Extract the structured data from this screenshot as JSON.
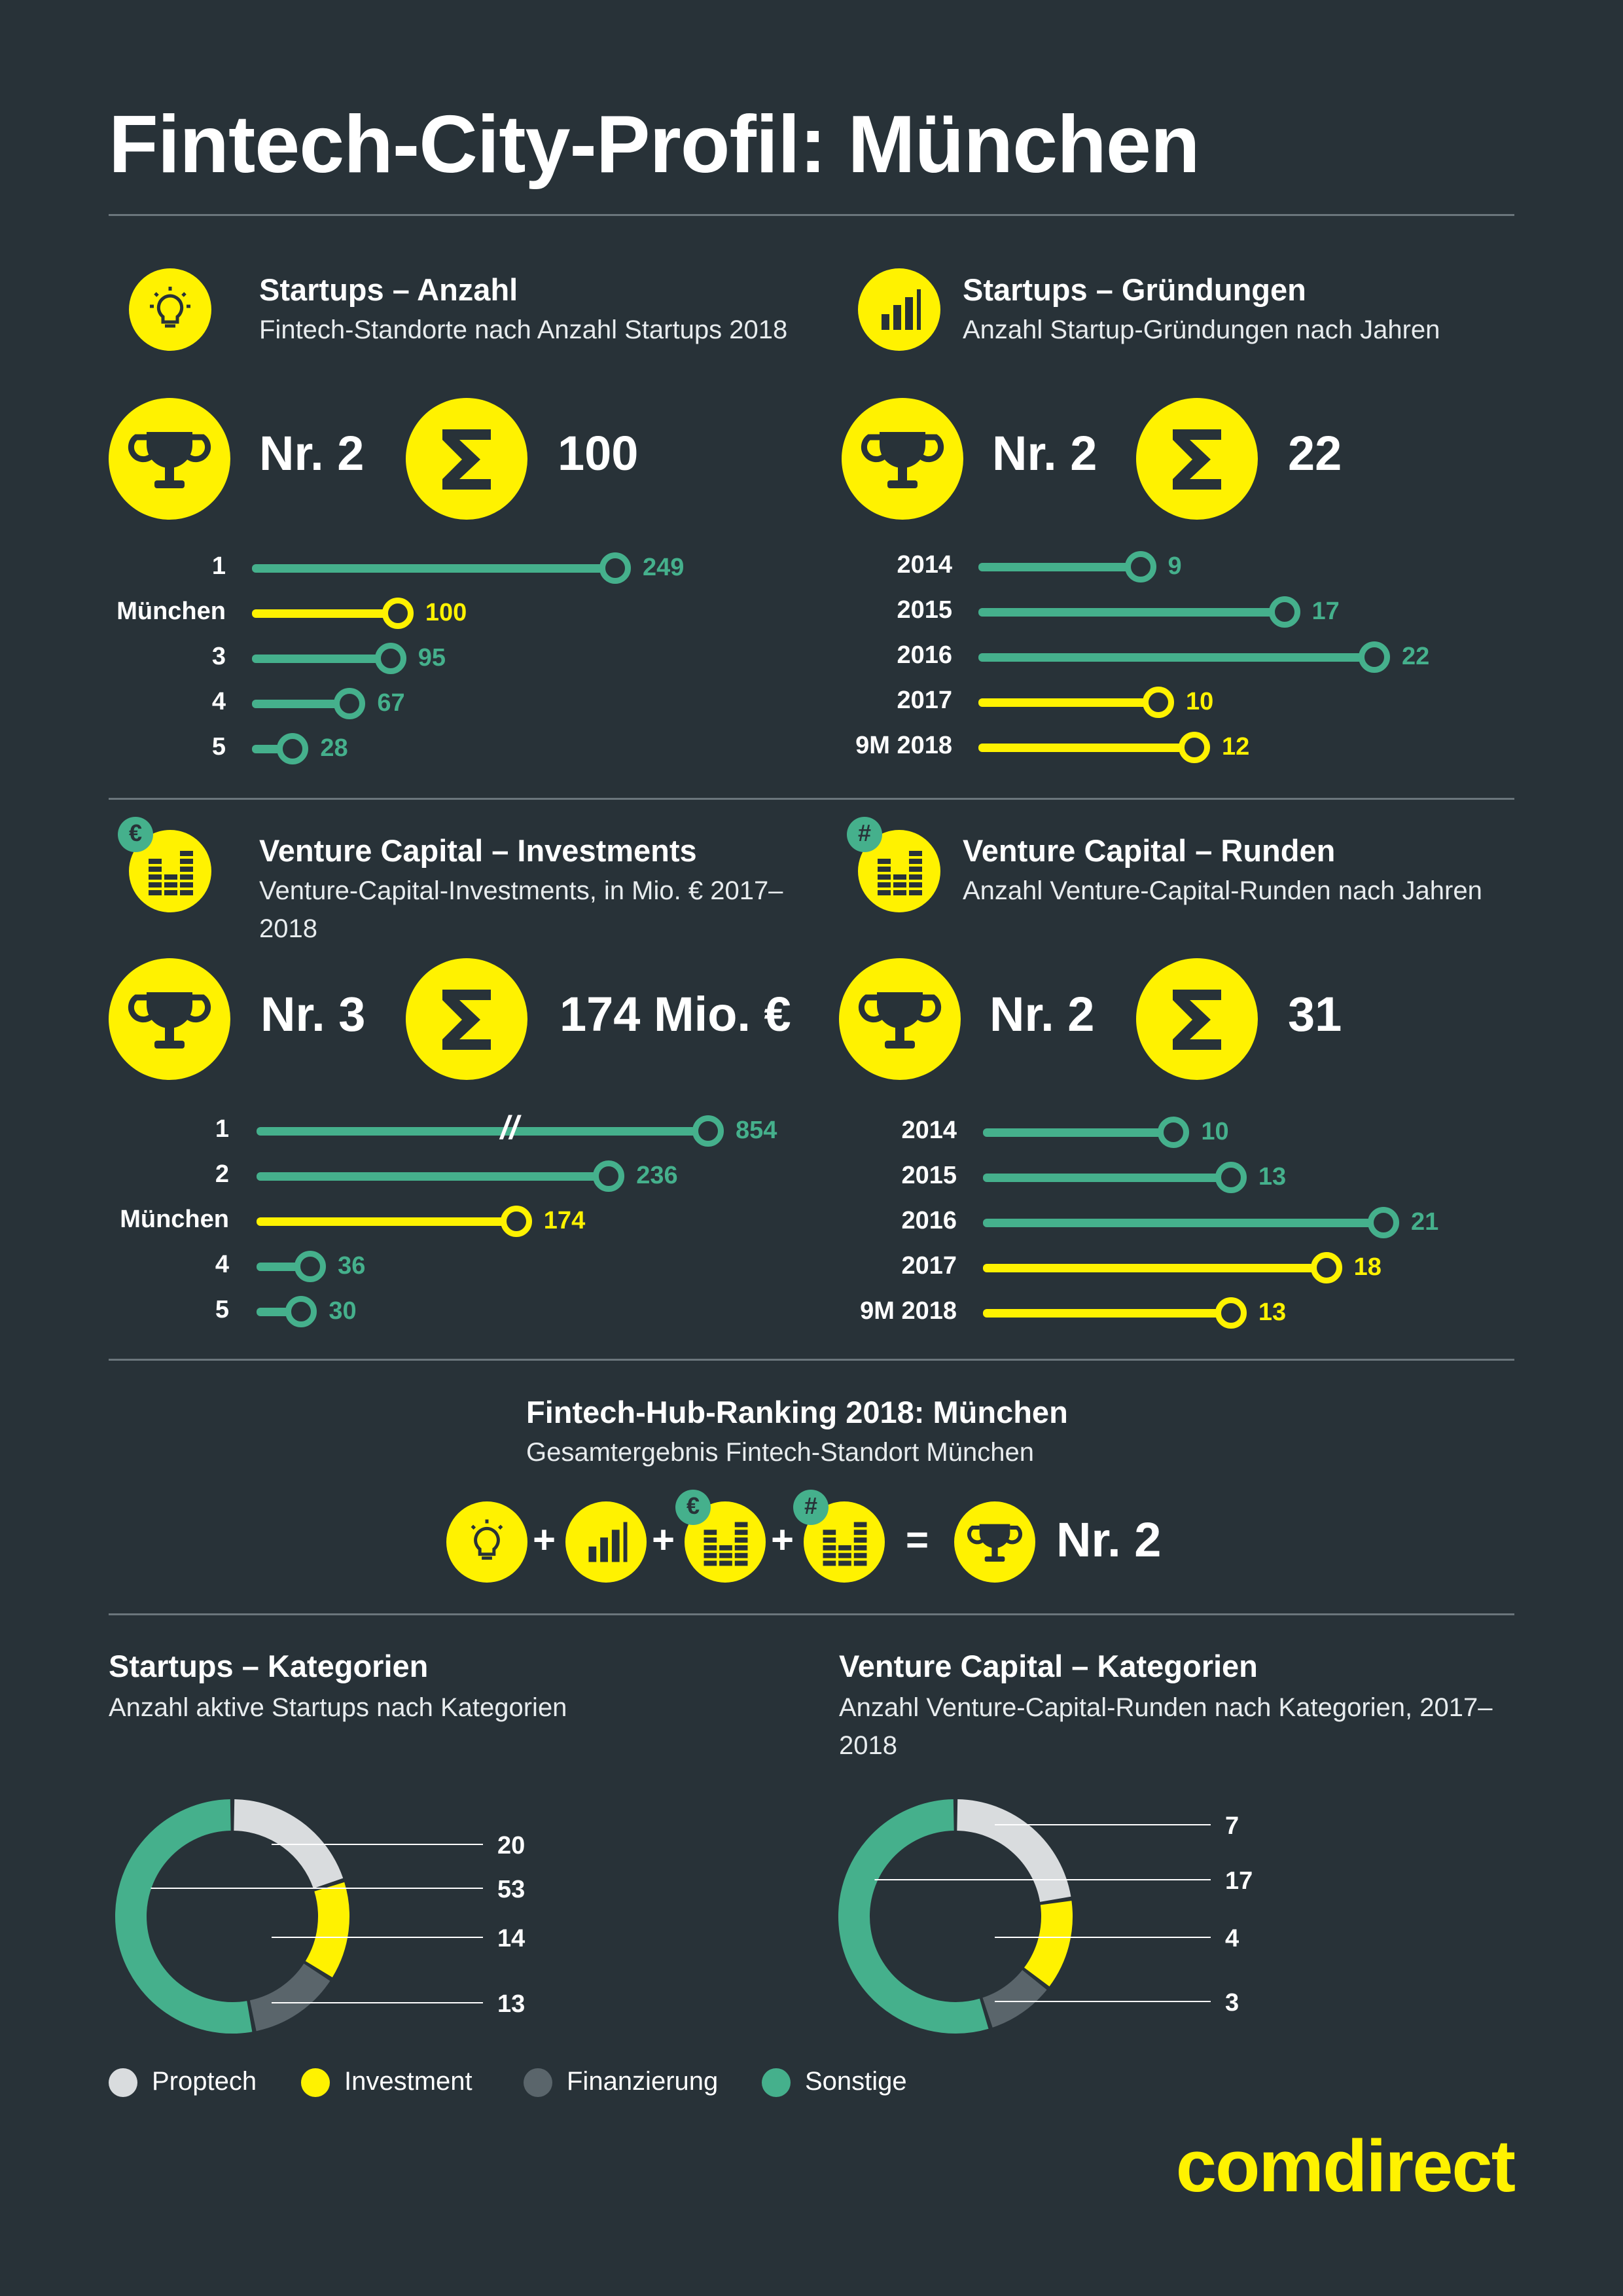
{
  "title": "Fintech-City-Profil: München",
  "colors": {
    "background": "#283238",
    "accent": "#fff200",
    "green": "#45b08c",
    "grey": "#d9dcde",
    "dark_grey": "#5a656b"
  },
  "sections": {
    "startups_count": {
      "title": "Startups – Anzahl",
      "subtitle": "Fintech-Standorte nach Anzahl Startups 2018",
      "icon": "lightbulb-icon",
      "rank": "Nr. 2",
      "total": "100"
    },
    "startups_founded": {
      "title": "Startups – Gründungen",
      "subtitle": "Anzahl Startup-Gründungen nach Jahren",
      "icon": "bar-chart-icon",
      "rank": "Nr. 2",
      "total": "22"
    },
    "vc_investments": {
      "title": "Venture Capital – Investments",
      "subtitle": "Venture-Capital-Investments, in Mio. € 2017–2018",
      "icon": "euro-coins-icon",
      "badge": "€",
      "rank": "Nr. 3",
      "total": "174 Mio. €"
    },
    "vc_rounds": {
      "title": "Venture Capital – Runden",
      "subtitle": "Anzahl Venture-Capital-Runden nach Jahren",
      "icon": "hash-coins-icon",
      "badge": "#",
      "rank": "Nr. 2",
      "total": "31"
    },
    "ranking": {
      "title": "Fintech-Hub-Ranking 2018: München",
      "subtitle": "Gesamtergebnis Fintech-Standort München",
      "plus": "+",
      "equals": "=",
      "result": "Nr. 2"
    },
    "startup_categories": {
      "title": "Startups – Kategorien",
      "subtitle": "Anzahl aktive Startups nach Kategorien"
    },
    "vc_categories": {
      "title": "Venture Capital – Kategorien",
      "subtitle": "Anzahl Venture-Capital-Runden nach Kategorien, 2017–2018"
    }
  },
  "legend": [
    {
      "label": "Proptech",
      "color": "#d9dcde"
    },
    {
      "label": "Investment",
      "color": "#fff200"
    },
    {
      "label": "Finanzierung",
      "color": "#5a656b"
    },
    {
      "label": "Sonstige",
      "color": "#45b08c"
    }
  ],
  "brand": "comdirect",
  "chart_data": [
    {
      "type": "bar",
      "title": "Startups – Anzahl",
      "categories": [
        "1",
        "München",
        "3",
        "4",
        "5"
      ],
      "values": [
        249,
        100,
        95,
        67,
        28
      ],
      "highlight": "München"
    },
    {
      "type": "bar",
      "title": "Startups – Gründungen",
      "categories": [
        "2014",
        "2015",
        "2016",
        "2017",
        "9M 2018"
      ],
      "values": [
        9,
        17,
        22,
        10,
        12
      ],
      "highlight": [
        "2017",
        "9M 2018"
      ]
    },
    {
      "type": "bar",
      "title": "Venture Capital – Investments",
      "categories": [
        "1",
        "2",
        "München",
        "4",
        "5"
      ],
      "values": [
        854,
        236,
        174,
        36,
        30
      ],
      "axis_break": true,
      "highlight": "München"
    },
    {
      "type": "bar",
      "title": "Venture Capital – Runden",
      "categories": [
        "2014",
        "2015",
        "2016",
        "2017",
        "9M 2018"
      ],
      "values": [
        10,
        13,
        21,
        18,
        13
      ],
      "highlight": [
        "2017",
        "9M 2018"
      ]
    },
    {
      "type": "pie",
      "title": "Startups – Kategorien",
      "categories": [
        "Proptech",
        "Investment",
        "Finanzierung",
        "Sonstige"
      ],
      "values": [
        20,
        14,
        13,
        53
      ]
    },
    {
      "type": "pie",
      "title": "Venture Capital – Kategorien",
      "categories": [
        "Proptech",
        "Investment",
        "Finanzierung",
        "Sonstige"
      ],
      "values": [
        7,
        4,
        3,
        17
      ]
    }
  ]
}
